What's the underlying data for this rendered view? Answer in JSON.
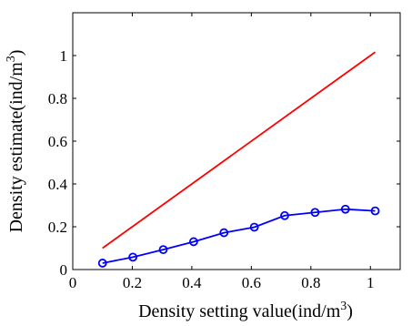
{
  "chart_data": {
    "type": "line",
    "xlabel": "Density setting value(ind/m",
    "xlabel_sup": "3",
    "xlabel_suffix": ")",
    "ylabel": "Density estimate(ind/m",
    "ylabel_sup": "3",
    "ylabel_suffix": ")",
    "xlim": [
      0,
      1.1
    ],
    "ylim": [
      0,
      1.2
    ],
    "xticks": [
      0,
      0.2,
      0.4,
      0.6,
      0.8,
      1
    ],
    "xtick_labels": [
      "0",
      "0.2",
      "0.4",
      "0.6",
      "0.8",
      "1"
    ],
    "yticks": [
      0,
      0.2,
      0.4,
      0.6,
      0.8,
      1
    ],
    "ytick_labels": [
      "0",
      "0.2",
      "0.4",
      "0.6",
      "0.8",
      "1"
    ],
    "grid": false,
    "legend": "none",
    "series": [
      {
        "color": "#ff0000",
        "marker": "none",
        "x": [
          0.1,
          1.016
        ],
        "y": [
          0.1,
          1.016
        ]
      },
      {
        "color": "#0000ff",
        "marker": "circle",
        "x": [
          0.1,
          0.202,
          0.304,
          0.406,
          0.508,
          0.61,
          0.712,
          0.814,
          0.916,
          1.016
        ],
        "y": [
          0.03,
          0.058,
          0.093,
          0.13,
          0.172,
          0.198,
          0.252,
          0.267,
          0.282,
          0.274
        ]
      }
    ]
  }
}
